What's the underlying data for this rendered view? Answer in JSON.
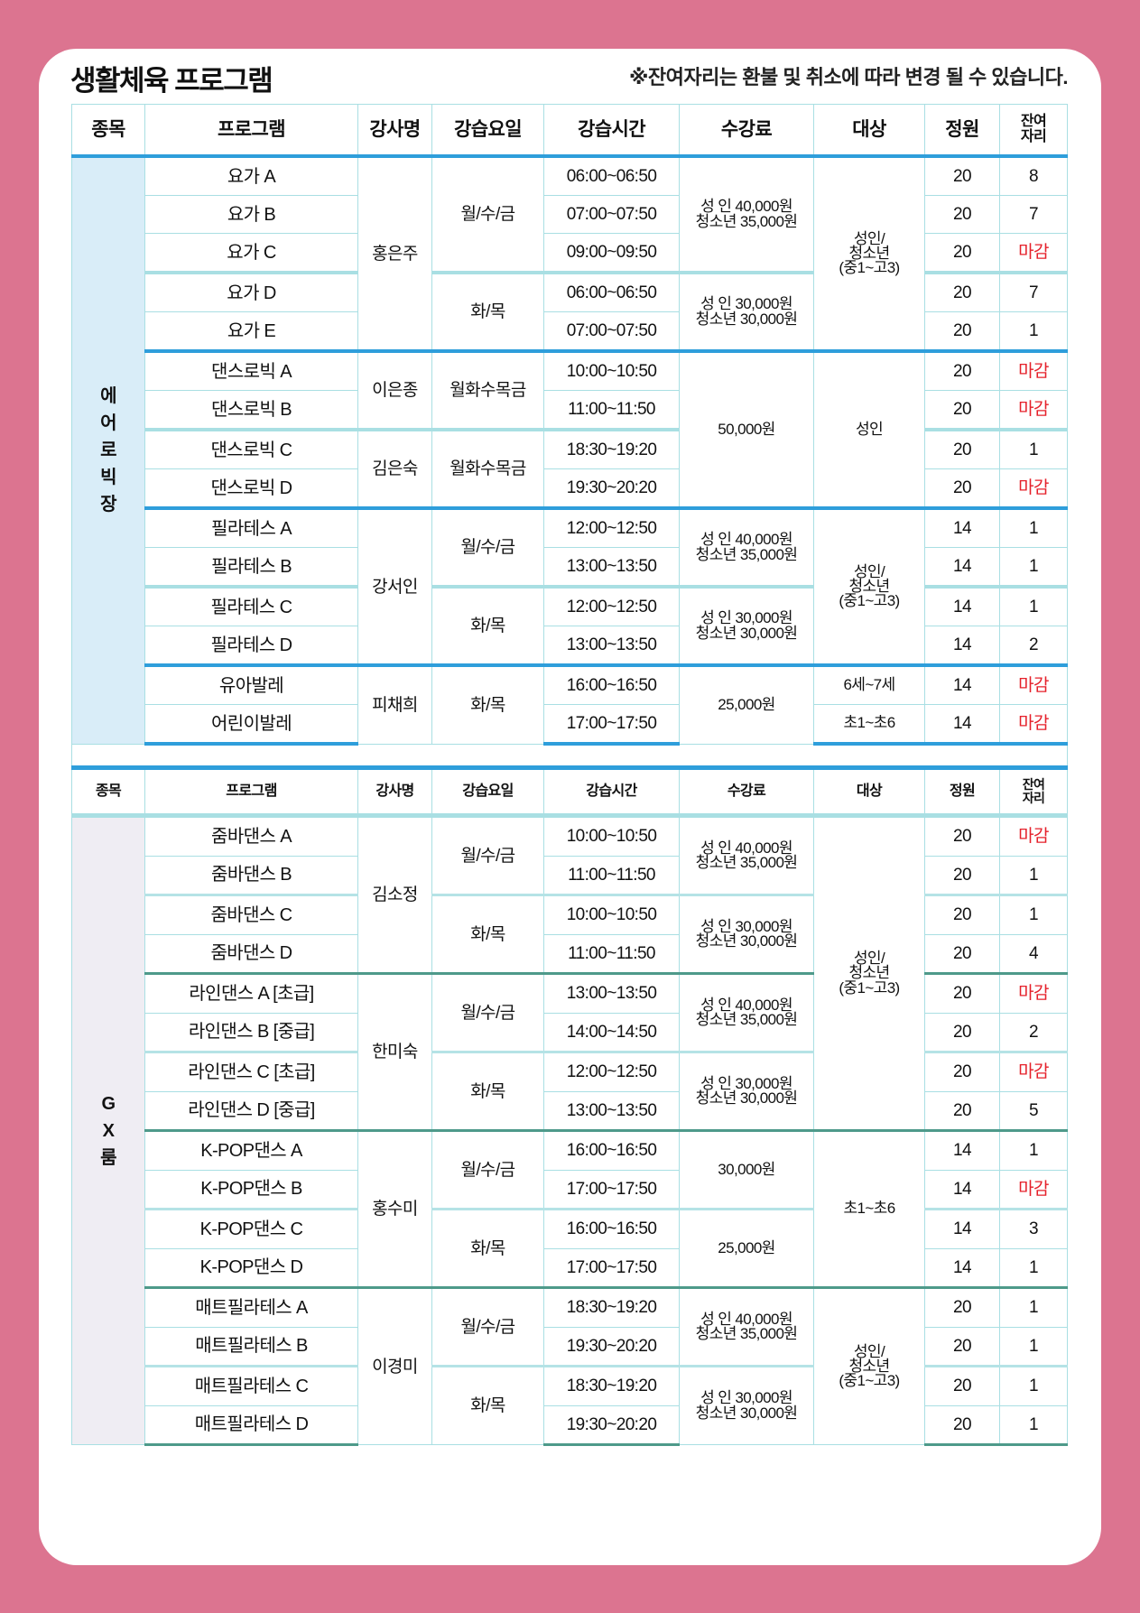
{
  "title": "생활체육 프로그램",
  "note": "※잔여자리는 환불 및 취소에 따라 변경 될 수 있습니다.",
  "headers": [
    "종목",
    "프로그램",
    "강사명",
    "강습요일",
    "강습시간",
    "수강료",
    "대상",
    "정원",
    "잔여\n자리"
  ],
  "colors": {
    "background": "#dc7490",
    "full": "#e5202a",
    "accent_blue": "#2e9edb",
    "accent_green": "#4e9a8a"
  },
  "sections": [
    {
      "category": "에\n어\n로\n빅\n장",
      "rows": [
        {
          "program": "요가 A",
          "time": "06:00~06:50",
          "capacity": "20",
          "remaining": "8"
        },
        {
          "program": "요가 B",
          "time": "07:00~07:50",
          "capacity": "20",
          "remaining": "7"
        },
        {
          "program": "요가 C",
          "time": "09:00~09:50",
          "capacity": "20",
          "remaining": "마감"
        },
        {
          "program": "요가 D",
          "time": "06:00~06:50",
          "capacity": "20",
          "remaining": "7"
        },
        {
          "program": "요가 E",
          "time": "07:00~07:50",
          "capacity": "20",
          "remaining": "1"
        },
        {
          "program": "댄스로빅 A",
          "time": "10:00~10:50",
          "capacity": "20",
          "remaining": "마감"
        },
        {
          "program": "댄스로빅 B",
          "time": "11:00~11:50",
          "capacity": "20",
          "remaining": "마감"
        },
        {
          "program": "댄스로빅 C",
          "time": "18:30~19:20",
          "capacity": "20",
          "remaining": "1"
        },
        {
          "program": "댄스로빅 D",
          "time": "19:30~20:20",
          "capacity": "20",
          "remaining": "마감"
        },
        {
          "program": "필라테스 A",
          "time": "12:00~12:50",
          "capacity": "14",
          "remaining": "1"
        },
        {
          "program": "필라테스 B",
          "time": "13:00~13:50",
          "capacity": "14",
          "remaining": "1"
        },
        {
          "program": "필라테스 C",
          "time": "12:00~12:50",
          "capacity": "14",
          "remaining": "1"
        },
        {
          "program": "필라테스 D",
          "time": "13:00~13:50",
          "capacity": "14",
          "remaining": "2"
        },
        {
          "program": "유아발레",
          "time": "16:00~16:50",
          "capacity": "14",
          "remaining": "마감"
        },
        {
          "program": "어린이발레",
          "time": "17:00~17:50",
          "capacity": "14",
          "remaining": "마감"
        }
      ],
      "instructors": [
        {
          "text": "홍은주",
          "span": 5
        },
        {
          "text": "이은종",
          "span": 2
        },
        {
          "text": "김은숙",
          "span": 2
        },
        {
          "text": "강서인",
          "span": 4
        },
        {
          "text": "피채희",
          "span": 2
        }
      ],
      "days": [
        {
          "text": "월/수/금",
          "span": 3
        },
        {
          "text": "화/목",
          "span": 2
        },
        {
          "text": "월화수목금",
          "span": 2
        },
        {
          "text": "월화수목금",
          "span": 2
        },
        {
          "text": "월/수/금",
          "span": 2
        },
        {
          "text": "화/목",
          "span": 2
        },
        {
          "text": "화/목",
          "span": 2
        }
      ],
      "fees": [
        {
          "text": "성  인 40,000원\n청소년 35,000원",
          "span": 3
        },
        {
          "text": "성 인 30,000원\n청소년 30,000원",
          "span": 2
        },
        {
          "text": "50,000원",
          "span": 4
        },
        {
          "text": "성 인 40,000원\n청소년 35,000원",
          "span": 2
        },
        {
          "text": "성 인 30,000원\n청소년 30,000원",
          "span": 2
        },
        {
          "text": "25,000원",
          "span": 2
        }
      ],
      "targets": [
        {
          "text": "성인/\n청소년\n(중1~고3)",
          "span": 5
        },
        {
          "text": "성인",
          "span": 4
        },
        {
          "text": "성인/\n청소년\n(중1~고3)",
          "span": 4
        },
        {
          "text": "6세~7세",
          "span": 1
        },
        {
          "text": "초1~초6",
          "span": 1
        }
      ]
    },
    {
      "category": "G\nX\n룸",
      "rows": [
        {
          "program": "줌바댄스 A",
          "time": "10:00~10:50",
          "capacity": "20",
          "remaining": "마감"
        },
        {
          "program": "줌바댄스 B",
          "time": "11:00~11:50",
          "capacity": "20",
          "remaining": "1"
        },
        {
          "program": "줌바댄스 C",
          "time": "10:00~10:50",
          "capacity": "20",
          "remaining": "1"
        },
        {
          "program": "줌바댄스 D",
          "time": "11:00~11:50",
          "capacity": "20",
          "remaining": "4"
        },
        {
          "program": "라인댄스 A [초급]",
          "time": "13:00~13:50",
          "capacity": "20",
          "remaining": "마감"
        },
        {
          "program": "라인댄스 B [중급]",
          "time": "14:00~14:50",
          "capacity": "20",
          "remaining": "2"
        },
        {
          "program": "라인댄스 C [초급]",
          "time": "12:00~12:50",
          "capacity": "20",
          "remaining": "마감"
        },
        {
          "program": "라인댄스 D [중급]",
          "time": "13:00~13:50",
          "capacity": "20",
          "remaining": "5"
        },
        {
          "program": "K-POP댄스 A",
          "time": "16:00~16:50",
          "capacity": "14",
          "remaining": "1"
        },
        {
          "program": "K-POP댄스 B",
          "time": "17:00~17:50",
          "capacity": "14",
          "remaining": "마감"
        },
        {
          "program": "K-POP댄스 C",
          "time": "16:00~16:50",
          "capacity": "14",
          "remaining": "3"
        },
        {
          "program": "K-POP댄스 D",
          "time": "17:00~17:50",
          "capacity": "14",
          "remaining": "1"
        },
        {
          "program": "매트필라테스 A",
          "time": "18:30~19:20",
          "capacity": "20",
          "remaining": "1"
        },
        {
          "program": "매트필라테스 B",
          "time": "19:30~20:20",
          "capacity": "20",
          "remaining": "1"
        },
        {
          "program": "매트필라테스 C",
          "time": "18:30~19:20",
          "capacity": "20",
          "remaining": "1"
        },
        {
          "program": "매트필라테스 D",
          "time": "19:30~20:20",
          "capacity": "20",
          "remaining": "1"
        }
      ],
      "instructors": [
        {
          "text": "김소정",
          "span": 4
        },
        {
          "text": "한미숙",
          "span": 4
        },
        {
          "text": "홍수미",
          "span": 4
        },
        {
          "text": "이경미",
          "span": 4
        }
      ],
      "days": [
        {
          "text": "월/수/금",
          "span": 2
        },
        {
          "text": "화/목",
          "span": 2
        },
        {
          "text": "월/수/금",
          "span": 2
        },
        {
          "text": "화/목",
          "span": 2
        },
        {
          "text": "월/수/금",
          "span": 2
        },
        {
          "text": "화/목",
          "span": 2
        },
        {
          "text": "월/수/금",
          "span": 2
        },
        {
          "text": "화/목",
          "span": 2
        }
      ],
      "fees": [
        {
          "text": "성 인 40,000원\n청소년 35,000원",
          "span": 2
        },
        {
          "text": "성 인 30,000원\n청소년 30,000원",
          "span": 2
        },
        {
          "text": "성 인 40,000원\n청소년 35,000원",
          "span": 2
        },
        {
          "text": "성 인 30,000원\n청소년 30,000원",
          "span": 2
        },
        {
          "text": "30,000원",
          "span": 2
        },
        {
          "text": "25,000원",
          "span": 2
        },
        {
          "text": "성 인 40,000원\n청소년 35,000원",
          "span": 2
        },
        {
          "text": "성 인 30,000원\n청소년 30,000원",
          "span": 2
        }
      ],
      "targets": [
        {
          "text": "성인/\n청소년\n(중1~고3)",
          "span": 8
        },
        {
          "text": "초1~초6",
          "span": 4
        },
        {
          "text": "성인/\n청소년\n(중1~고3)",
          "span": 4
        }
      ]
    }
  ]
}
